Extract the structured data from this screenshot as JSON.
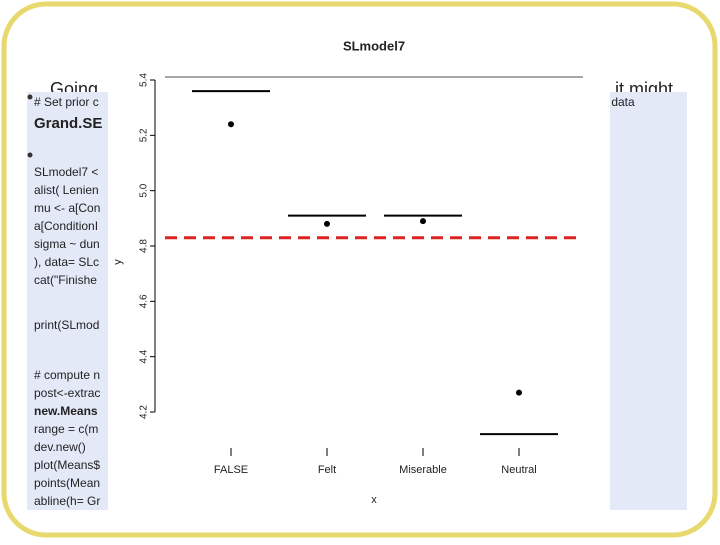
{
  "slide": {
    "heading_left": "Going",
    "heading_right": "it might",
    "code_lines": [
      "# Set prior c",
      "Grand.SE",
      "SLmodel7 <",
      "alist( Lenien",
      "mu <- a[Con",
      "a[ConditionI",
      "sigma ~ dun",
      "), data= SLc",
      "cat(\"Finishe",
      "print(SLmod",
      "# compute n",
      "post<-extrac",
      "new.Means",
      "range = c(m",
      "dev.new()",
      "plot(Means$",
      "points(Mean",
      "abline(h= Gr"
    ],
    "right_fragments": [
      "m data",
      ") )"
    ]
  },
  "chart_data": {
    "type": "dot",
    "title": "SLmodel7",
    "xlabel": "x",
    "ylabel": "y",
    "categories": [
      "FALSE",
      "Felt",
      "Miserable",
      "Neutral"
    ],
    "values": [
      5.24,
      4.88,
      4.89,
      4.27
    ],
    "color": "#000000",
    "line_values": [
      5.36,
      4.91,
      4.91,
      4.12
    ],
    "reference_line": 4.83,
    "reference_color": "#dd2222",
    "ylim": [
      4.2,
      5.4
    ],
    "yticks": [
      4.2,
      4.4,
      4.6,
      4.8,
      {
        "value": 5,
        "label": "5.0"
      },
      5.2,
      5.4
    ]
  }
}
